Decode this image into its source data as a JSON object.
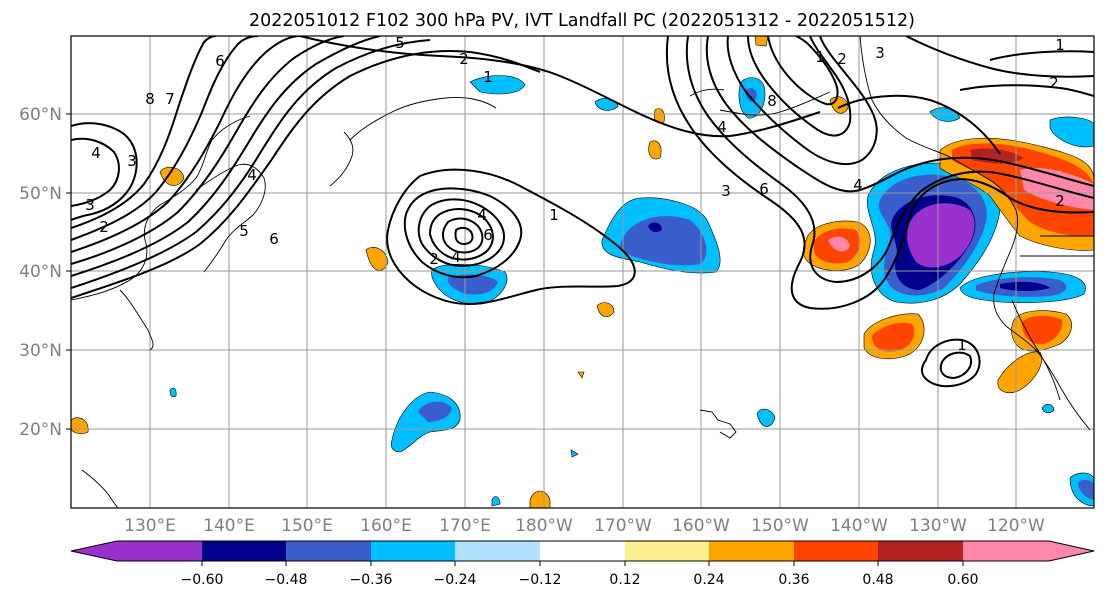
{
  "title": "2022051012 F102 300 hPa PV, IVT Landfall PC (2022051312 - 2022051512)",
  "map": {
    "lat_ticks": [
      "60°N",
      "50°N",
      "40°N",
      "30°N",
      "20°N"
    ],
    "lon_ticks": [
      "130°E",
      "140°E",
      "150°E",
      "160°E",
      "170°E",
      "180°W",
      "170°W",
      "160°W",
      "150°W",
      "140°W",
      "130°W",
      "120°W"
    ],
    "contour_labels": [
      "5",
      "2",
      "1",
      "6",
      "8",
      "7",
      "4",
      "3",
      "2",
      "3",
      "4",
      "5",
      "6",
      "4",
      "6",
      "1",
      "2",
      "4",
      "4",
      "3",
      "8",
      "2",
      "3",
      "4",
      "6",
      "1",
      "2",
      "2",
      "1",
      "1"
    ]
  },
  "colorbar": {
    "tick_labels": [
      "−0.60",
      "−0.48",
      "−0.36",
      "−0.24",
      "−0.12",
      "0.12",
      "0.24",
      "0.36",
      "0.48",
      "0.60"
    ],
    "colors": [
      "#9932cc",
      "#00008b",
      "#3a5fcd",
      "#00bfff",
      "#b0e2ff",
      "#ffffff",
      "#fff08f",
      "#ffa500",
      "#ff4500",
      "#b22222",
      "#ff88aa"
    ]
  }
}
